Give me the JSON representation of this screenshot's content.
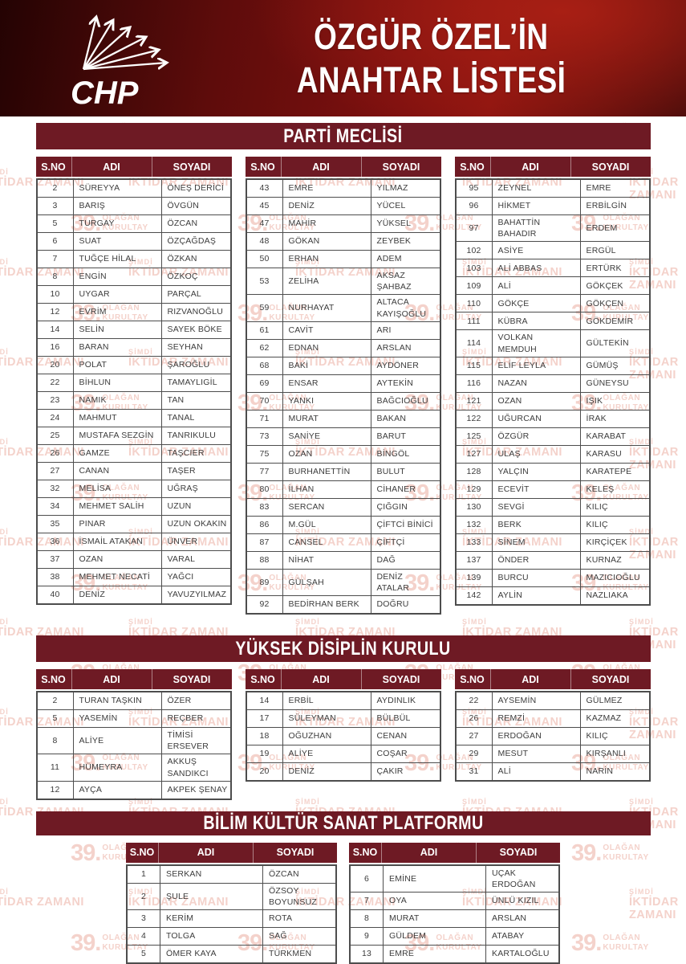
{
  "header": {
    "logo": "CHP",
    "title_line1": "ÖZGÜR ÖZEL’İN",
    "title_line2": "ANAHTAR LİSTESİ"
  },
  "table_columns": {
    "sno": "S.NO",
    "adi": "ADI",
    "soyadi": "SOYADI"
  },
  "watermarks": {
    "big_number": "39.",
    "line1": "OLAĞAN",
    "line2": "KURULTAY",
    "small_top": "ŞİMDİ",
    "bottom_line": "İKTİDAR ZAMANI"
  },
  "colors": {
    "bar_maroon": "#6e1a24",
    "header_red_bright": "#a81f14",
    "header_red_dark": "#240303",
    "watermark_pink": "#f4d2cb",
    "grid_border": "#4d4d4d",
    "cell_text": "#3c3c3c"
  },
  "sections": [
    {
      "title": "PARTİ MECLİSİ",
      "tables": [
        {
          "rows": [
            {
              "no": "2",
              "adi": "SÜREYYA",
              "soyadi": "ÖNEŞ DERİCİ"
            },
            {
              "no": "3",
              "adi": "BARIŞ",
              "soyadi": "ÖVGÜN"
            },
            {
              "no": "5",
              "adi": "TURGAY",
              "soyadi": "ÖZCAN"
            },
            {
              "no": "6",
              "adi": "SUAT",
              "soyadi": "ÖZÇAĞDAŞ"
            },
            {
              "no": "7",
              "adi": "TUĞÇE HİLAL",
              "soyadi": "ÖZKAN"
            },
            {
              "no": "8",
              "adi": "ENGİN",
              "soyadi": "ÖZKOÇ"
            },
            {
              "no": "10",
              "adi": "UYGAR",
              "soyadi": "PARÇAL"
            },
            {
              "no": "12",
              "adi": "EVRİM",
              "soyadi": "RIZVANOĞLU"
            },
            {
              "no": "14",
              "adi": "SELİN",
              "soyadi": "SAYEK BÖKE"
            },
            {
              "no": "16",
              "adi": "BARAN",
              "soyadi": "SEYHAN"
            },
            {
              "no": "20",
              "adi": "POLAT",
              "soyadi": "ŞAROĞLU"
            },
            {
              "no": "22",
              "adi": "BİHLUN",
              "soyadi": "TAMAYLIGİL"
            },
            {
              "no": "23",
              "adi": "NAMIK",
              "soyadi": "TAN"
            },
            {
              "no": "24",
              "adi": "MAHMUT",
              "soyadi": "TANAL"
            },
            {
              "no": "25",
              "adi": "MUSTAFA SEZGİN",
              "soyadi": "TANRIKULU"
            },
            {
              "no": "26",
              "adi": "GAMZE",
              "soyadi": "TAŞCIER"
            },
            {
              "no": "27",
              "adi": "CANAN",
              "soyadi": "TAŞER"
            },
            {
              "no": "32",
              "adi": "MELİSA",
              "soyadi": "UĞRAŞ"
            },
            {
              "no": "34",
              "adi": "MEHMET SALİH",
              "soyadi": "UZUN"
            },
            {
              "no": "35",
              "adi": "PINAR",
              "soyadi": "UZUN OKAKIN"
            },
            {
              "no": "36",
              "adi": "İSMAİL ATAKAN",
              "soyadi": "ÜNVER"
            },
            {
              "no": "37",
              "adi": "OZAN",
              "soyadi": "VARAL"
            },
            {
              "no": "38",
              "adi": "MEHMET NECATİ",
              "soyadi": "YAĞCI"
            },
            {
              "no": "40",
              "adi": "DENİZ",
              "soyadi": "YAVUZYILMAZ"
            }
          ]
        },
        {
          "rows": [
            {
              "no": "43",
              "adi": "EMRE",
              "soyadi": "YILMAZ"
            },
            {
              "no": "45",
              "adi": "DENİZ",
              "soyadi": "YÜCEL"
            },
            {
              "no": "47",
              "adi": "MAHİR",
              "soyadi": "YÜKSEL"
            },
            {
              "no": "48",
              "adi": "GÖKAN",
              "soyadi": "ZEYBEK"
            },
            {
              "no": "50",
              "adi": "ERHAN",
              "soyadi": "ADEM"
            },
            {
              "no": "53",
              "adi": "ZELİHA",
              "soyadi": "AKSAZ ŞAHBAZ"
            },
            {
              "no": "59",
              "adi": "NURHAYAT",
              "soyadi": "ALTACA\nKAYIŞOĞLU"
            },
            {
              "no": "61",
              "adi": "CAVİT",
              "soyadi": "ARI"
            },
            {
              "no": "62",
              "adi": "EDNAN",
              "soyadi": "ARSLAN"
            },
            {
              "no": "68",
              "adi": "BAKİ",
              "soyadi": "AYDÖNER"
            },
            {
              "no": "69",
              "adi": "ENSAR",
              "soyadi": "AYTEKİN"
            },
            {
              "no": "70",
              "adi": "YANKI",
              "soyadi": "BAĞCIOĞLU"
            },
            {
              "no": "71",
              "adi": "MURAT",
              "soyadi": "BAKAN"
            },
            {
              "no": "73",
              "adi": "SANİYE",
              "soyadi": "BARUT"
            },
            {
              "no": "75",
              "adi": "OZAN",
              "soyadi": "BİNGÖL"
            },
            {
              "no": "77",
              "adi": "BURHANETTİN",
              "soyadi": "BULUT"
            },
            {
              "no": "80",
              "adi": "İLHAN",
              "soyadi": "CİHANER"
            },
            {
              "no": "83",
              "adi": "SERCAN",
              "soyadi": "ÇIĞGIN"
            },
            {
              "no": "86",
              "adi": "M.GÜL",
              "soyadi": "ÇİFTCİ BİNİCİ"
            },
            {
              "no": "87",
              "adi": "CANSEL",
              "soyadi": "ÇİFTÇİ"
            },
            {
              "no": "88",
              "adi": "NİHAT",
              "soyadi": "DAĞ"
            },
            {
              "no": "89",
              "adi": "GÜLŞAH",
              "soyadi": "DENİZ ATALAR"
            },
            {
              "no": "92",
              "adi": "BEDİRHAN BERK",
              "soyadi": "DOĞRU"
            }
          ]
        },
        {
          "rows": [
            {
              "no": "95",
              "adi": "ZEYNEL",
              "soyadi": "EMRE"
            },
            {
              "no": "96",
              "adi": "HİKMET",
              "soyadi": "ERBİLGİN"
            },
            {
              "no": "97",
              "adi": "BAHATTİN\nBAHADIR",
              "soyadi": "ERDEM"
            },
            {
              "no": "102",
              "adi": "ASİYE",
              "soyadi": "ERGÜL"
            },
            {
              "no": "103",
              "adi": "ALİ ABBAS",
              "soyadi": "ERTÜRK"
            },
            {
              "no": "109",
              "adi": "ALİ",
              "soyadi": "GÖKÇEK"
            },
            {
              "no": "110",
              "adi": "GÖKÇE",
              "soyadi": "GÖKÇEN"
            },
            {
              "no": "111",
              "adi": "KÜBRA",
              "soyadi": "GÖKDEMİR"
            },
            {
              "no": "114",
              "adi": "VOLKAN\nMEMDUH",
              "soyadi": "GÜLTEKİN"
            },
            {
              "no": "115",
              "adi": "ELİF LEYLA",
              "soyadi": "GÜMÜŞ"
            },
            {
              "no": "116",
              "adi": "NAZAN",
              "soyadi": "GÜNEYSU"
            },
            {
              "no": "121",
              "adi": "OZAN",
              "soyadi": "IŞIK"
            },
            {
              "no": "122",
              "adi": "UĞURCAN",
              "soyadi": "İRAK"
            },
            {
              "no": "125",
              "adi": "ÖZGÜR",
              "soyadi": "KARABAT"
            },
            {
              "no": "127",
              "adi": "ULAŞ",
              "soyadi": "KARASU"
            },
            {
              "no": "128",
              "adi": "YALÇIN",
              "soyadi": "KARATEPE"
            },
            {
              "no": "129",
              "adi": "ECEVİT",
              "soyadi": "KELEŞ"
            },
            {
              "no": "130",
              "adi": "SEVGİ",
              "soyadi": "KILIÇ"
            },
            {
              "no": "132",
              "adi": "BERK",
              "soyadi": "KILIÇ"
            },
            {
              "no": "133",
              "adi": "SİNEM",
              "soyadi": "KIRÇİÇEK"
            },
            {
              "no": "137",
              "adi": "ÖNDER",
              "soyadi": "KURNAZ"
            },
            {
              "no": "139",
              "adi": "BURCU",
              "soyadi": "MAZICIOĞLU"
            },
            {
              "no": "142",
              "adi": "AYLİN",
              "soyadi": "NAZLIAKA"
            }
          ]
        }
      ]
    },
    {
      "title": "YÜKSEK DİSİPLİN KURULU",
      "tables": [
        {
          "rows": [
            {
              "no": "2",
              "adi": "TURAN TAŞKIN",
              "soyadi": "ÖZER"
            },
            {
              "no": "5",
              "adi": "YASEMİN",
              "soyadi": "REÇBER"
            },
            {
              "no": "8",
              "adi": "ALİYE",
              "soyadi": "TİMİSİ ERSEVER"
            },
            {
              "no": "11",
              "adi": "HÜMEYRA",
              "soyadi": "AKKUŞ SANDIKCI"
            },
            {
              "no": "12",
              "adi": "AYÇA",
              "soyadi": "AKPEK ŞENAY"
            }
          ]
        },
        {
          "rows": [
            {
              "no": "14",
              "adi": "ERBİL",
              "soyadi": "AYDINLIK"
            },
            {
              "no": "17",
              "adi": "SÜLEYMAN",
              "soyadi": "BÜLBÜL"
            },
            {
              "no": "18",
              "adi": "OĞUZHAN",
              "soyadi": "CENAN"
            },
            {
              "no": "19",
              "adi": "ALİYE",
              "soyadi": "COŞAR"
            },
            {
              "no": "20",
              "adi": "DENİZ",
              "soyadi": "ÇAKIR"
            }
          ]
        },
        {
          "rows": [
            {
              "no": "22",
              "adi": "AYSEMİN",
              "soyadi": "GÜLMEZ"
            },
            {
              "no": "26",
              "adi": "REMZİ",
              "soyadi": "KAZMAZ"
            },
            {
              "no": "27",
              "adi": "ERDOĞAN",
              "soyadi": "KILIÇ"
            },
            {
              "no": "29",
              "adi": "MESUT",
              "soyadi": "KIRŞANLI"
            },
            {
              "no": "31",
              "adi": "ALİ",
              "soyadi": "NARİN"
            }
          ]
        }
      ]
    },
    {
      "title": "BİLİM KÜLTÜR SANAT PLATFORMU",
      "tables": [
        {
          "rows": [
            {
              "no": "1",
              "adi": "SERKAN",
              "soyadi": "ÖZCAN"
            },
            {
              "no": "2",
              "adi": "ŞULE",
              "soyadi": "ÖZSOY BOYUNSUZ"
            },
            {
              "no": "3",
              "adi": "KERİM",
              "soyadi": "ROTA"
            },
            {
              "no": "4",
              "adi": "TOLGA",
              "soyadi": "SAĞ"
            },
            {
              "no": "5",
              "adi": "ÖMER KAYA",
              "soyadi": "TÜRKMEN"
            }
          ]
        },
        {
          "rows": [
            {
              "no": "6",
              "adi": "EMİNE",
              "soyadi": "UÇAK ERDOĞAN"
            },
            {
              "no": "7",
              "adi": "OYA",
              "soyadi": "ÜNLÜ KIZIL"
            },
            {
              "no": "8",
              "adi": "MURAT",
              "soyadi": "ARSLAN"
            },
            {
              "no": "9",
              "adi": "GÜLDEM",
              "soyadi": "ATABAY"
            },
            {
              "no": "13",
              "adi": "EMRE",
              "soyadi": "KARTALOĞLU"
            }
          ]
        }
      ]
    }
  ]
}
